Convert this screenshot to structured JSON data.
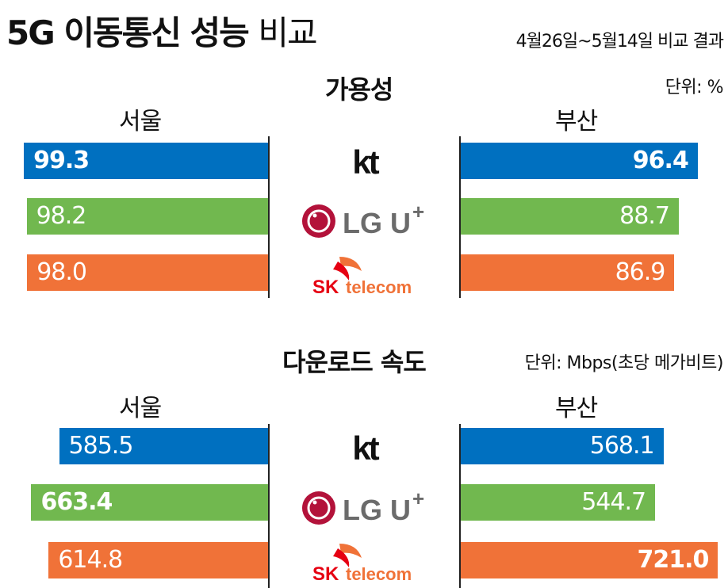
{
  "header": {
    "title_bold": "5G 이동통신 성능",
    "title_light": "비교",
    "period": "4월26일~5월14일 비교 결과"
  },
  "colors": {
    "kt": "#0070c0",
    "lgu": "#71b84f",
    "skt": "#f07238"
  },
  "carriers": [
    {
      "id": "kt",
      "name": "kt",
      "logo_icon": "kt-logo"
    },
    {
      "id": "lgu",
      "name": "LG U+",
      "logo_icon": "lg-uplus-logo"
    },
    {
      "id": "skt",
      "name": "SK telecom",
      "logo_icon": "sk-telecom-logo"
    }
  ],
  "chart_data": [
    {
      "type": "bar",
      "title": "가용성",
      "unit_label": "단위: %",
      "panels": [
        "서울",
        "부산"
      ],
      "categories": [
        "kt",
        "LG U+",
        "SK telecom"
      ],
      "series": [
        {
          "name": "서울",
          "values": [
            99.3,
            98.2,
            98.0
          ],
          "labels": [
            "99.3",
            "98.2",
            "98.0"
          ]
        },
        {
          "name": "부산",
          "values": [
            96.4,
            88.7,
            86.9
          ],
          "labels": [
            "96.4",
            "88.7",
            "86.9"
          ]
        }
      ],
      "grid": false
    },
    {
      "type": "bar",
      "title": "다운로드 속도",
      "unit_label": "단위: Mbps(초당 메가비트)",
      "panels": [
        "서울",
        "부산"
      ],
      "categories": [
        "kt",
        "LG U+",
        "SK telecom"
      ],
      "series": [
        {
          "name": "서울",
          "values": [
            585.5,
            663.4,
            614.8
          ],
          "labels": [
            "585.5",
            "663.4",
            "614.8"
          ]
        },
        {
          "name": "부산",
          "values": [
            568.1,
            544.7,
            721.0
          ],
          "labels": [
            "568.1",
            "544.7",
            "721.0"
          ]
        }
      ],
      "grid": false
    }
  ]
}
